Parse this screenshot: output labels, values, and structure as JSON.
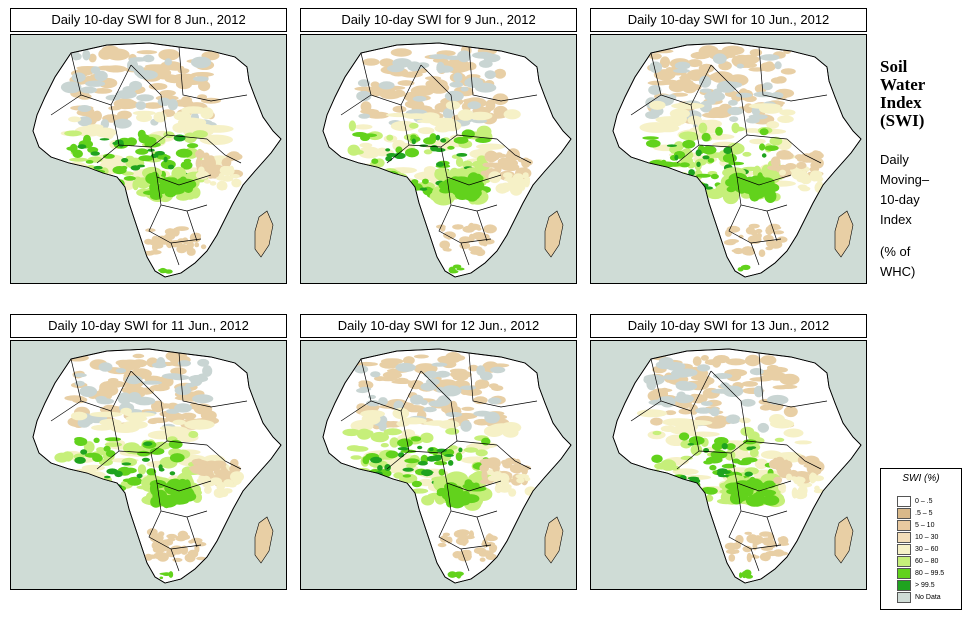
{
  "panels": [
    {
      "title": "Daily 10-day SWI for  8 Jun., 2012",
      "variant": 0
    },
    {
      "title": "Daily 10-day SWI for  9 Jun., 2012",
      "variant": 1
    },
    {
      "title": "Daily 10-day SWI for  10 Jun., 2012",
      "variant": 2
    },
    {
      "title": "Daily 10-day SWI for  11 Jun., 2012",
      "variant": 3
    },
    {
      "title": "Daily 10-day SWI for  12 Jun., 2012",
      "variant": 4
    },
    {
      "title": "Daily 10-day SWI for  13 Jun., 2012",
      "variant": 5
    }
  ],
  "side": {
    "title_lines": [
      "Soil",
      "Water",
      "Index",
      "(SWI)"
    ],
    "subtitle_lines": [
      "Daily",
      "Moving–",
      "10-day",
      "Index"
    ],
    "units_lines": [
      "(% of",
      " WHC)"
    ]
  },
  "legend": {
    "title": "SWI (%)",
    "items": [
      {
        "label": "0 – .5",
        "color": "#ffffff"
      },
      {
        "label": ".5 – 5",
        "color": "#d9b98a"
      },
      {
        "label": "5 – 10",
        "color": "#e8c9a0"
      },
      {
        "label": "10 – 30",
        "color": "#f3deb9"
      },
      {
        "label": "30 – 60",
        "color": "#f6f1c7"
      },
      {
        "label": "60 – 80",
        "color": "#c6ef7a"
      },
      {
        "label": "80 – 99.5",
        "color": "#62d21c"
      },
      {
        "label": "> 99.5",
        "color": "#1fa31f"
      },
      {
        "label": "No Data",
        "color": "#cfdcd6"
      }
    ]
  },
  "colors": {
    "ocean": "#cfdcd6",
    "land": "#ffffff",
    "dry_tan": "#e8cfa5",
    "no_data": "#c9d5d3",
    "wet_light": "#f6f1c7",
    "wet_mid": "#c6ef7a",
    "wet_high": "#62d21c",
    "wet_max": "#1fa31f"
  }
}
